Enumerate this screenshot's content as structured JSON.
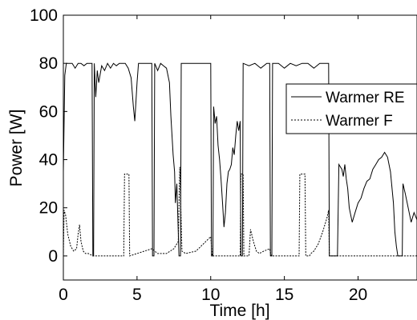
{
  "chart_data": {
    "type": "line",
    "xlabel": "Time [h]",
    "ylabel": "Power [W]",
    "xlim": [
      0,
      24
    ],
    "ylim": [
      -10,
      100
    ],
    "xticks": [
      0,
      5,
      10,
      15,
      20
    ],
    "yticks": [
      0,
      20,
      40,
      60,
      80,
      100
    ],
    "grid": false,
    "legend_position": "right",
    "series": [
      {
        "name": "Warmer RE",
        "line_style": "solid",
        "color": "#000000",
        "points": [
          [
            0,
            35
          ],
          [
            0.1,
            75
          ],
          [
            0.2,
            80
          ],
          [
            0.4,
            80
          ],
          [
            0.6,
            80
          ],
          [
            0.8,
            78
          ],
          [
            1.0,
            80
          ],
          [
            1.2,
            80
          ],
          [
            1.4,
            79
          ],
          [
            1.6,
            80
          ],
          [
            1.8,
            80
          ],
          [
            1.95,
            80
          ],
          [
            2.0,
            0
          ],
          [
            2.05,
            0
          ],
          [
            2.1,
            80
          ],
          [
            2.2,
            66
          ],
          [
            2.3,
            77
          ],
          [
            2.4,
            72
          ],
          [
            2.6,
            79
          ],
          [
            2.8,
            77
          ],
          [
            3.0,
            80
          ],
          [
            3.2,
            78
          ],
          [
            3.4,
            80
          ],
          [
            3.6,
            79
          ],
          [
            3.8,
            80
          ],
          [
            4.0,
            80
          ],
          [
            4.2,
            80
          ],
          [
            4.4,
            78
          ],
          [
            4.6,
            74
          ],
          [
            4.75,
            62
          ],
          [
            4.85,
            56
          ],
          [
            5.0,
            72
          ],
          [
            5.1,
            80
          ],
          [
            5.4,
            80
          ],
          [
            5.7,
            80
          ],
          [
            5.9,
            80
          ],
          [
            6.0,
            80
          ],
          [
            6.05,
            0
          ],
          [
            6.15,
            0
          ],
          [
            6.2,
            80
          ],
          [
            6.4,
            77
          ],
          [
            6.6,
            80
          ],
          [
            6.8,
            79
          ],
          [
            7.0,
            78
          ],
          [
            7.2,
            72
          ],
          [
            7.3,
            58
          ],
          [
            7.45,
            42
          ],
          [
            7.55,
            35
          ],
          [
            7.6,
            22
          ],
          [
            7.7,
            30
          ],
          [
            7.75,
            20
          ],
          [
            7.85,
            0
          ],
          [
            7.95,
            0
          ],
          [
            8.0,
            80
          ],
          [
            8.5,
            80
          ],
          [
            9.0,
            80
          ],
          [
            9.5,
            80
          ],
          [
            10.0,
            80
          ],
          [
            10.05,
            0
          ],
          [
            10.15,
            0
          ],
          [
            10.2,
            62
          ],
          [
            10.3,
            55
          ],
          [
            10.4,
            58
          ],
          [
            10.5,
            46
          ],
          [
            10.6,
            40
          ],
          [
            10.7,
            32
          ],
          [
            10.8,
            22
          ],
          [
            10.9,
            12
          ],
          [
            11.0,
            18
          ],
          [
            11.1,
            30
          ],
          [
            11.2,
            35
          ],
          [
            11.3,
            36
          ],
          [
            11.4,
            38
          ],
          [
            11.5,
            45
          ],
          [
            11.6,
            42
          ],
          [
            11.7,
            50
          ],
          [
            11.8,
            56
          ],
          [
            11.9,
            52
          ],
          [
            12.0,
            56
          ],
          [
            12.05,
            0
          ],
          [
            12.15,
            0
          ],
          [
            12.2,
            80
          ],
          [
            12.6,
            79
          ],
          [
            13.0,
            80
          ],
          [
            13.4,
            78
          ],
          [
            13.8,
            80
          ],
          [
            14.0,
            80
          ],
          [
            14.05,
            0
          ],
          [
            14.15,
            0
          ],
          [
            14.2,
            80
          ],
          [
            14.6,
            80
          ],
          [
            15.0,
            78
          ],
          [
            15.4,
            80
          ],
          [
            15.8,
            79
          ],
          [
            16.2,
            80
          ],
          [
            16.6,
            80
          ],
          [
            17.0,
            78
          ],
          [
            17.4,
            80
          ],
          [
            17.8,
            80
          ],
          [
            18.0,
            80
          ],
          [
            18.05,
            0
          ],
          [
            18.6,
            0
          ],
          [
            18.7,
            38
          ],
          [
            18.9,
            36
          ],
          [
            19.0,
            33
          ],
          [
            19.1,
            38
          ],
          [
            19.2,
            32
          ],
          [
            19.3,
            28
          ],
          [
            19.4,
            20
          ],
          [
            19.6,
            14
          ],
          [
            19.8,
            18
          ],
          [
            20.0,
            22
          ],
          [
            20.2,
            24
          ],
          [
            20.4,
            28
          ],
          [
            20.6,
            31
          ],
          [
            20.8,
            32
          ],
          [
            21.0,
            36
          ],
          [
            21.2,
            38
          ],
          [
            21.4,
            40
          ],
          [
            21.6,
            41
          ],
          [
            21.8,
            43
          ],
          [
            22.0,
            41
          ],
          [
            22.2,
            35
          ],
          [
            22.4,
            22
          ],
          [
            22.5,
            10
          ],
          [
            22.6,
            4
          ],
          [
            22.7,
            0
          ],
          [
            23.0,
            0
          ],
          [
            23.05,
            30
          ],
          [
            23.2,
            26
          ],
          [
            23.4,
            20
          ],
          [
            23.6,
            14
          ],
          [
            23.8,
            18
          ],
          [
            24.0,
            15
          ]
        ]
      },
      {
        "name": "Warmer F",
        "line_style": "dashed",
        "color": "#000000",
        "points": [
          [
            0,
            0
          ],
          [
            0.05,
            19
          ],
          [
            0.15,
            17
          ],
          [
            0.3,
            9
          ],
          [
            0.5,
            4
          ],
          [
            0.7,
            2
          ],
          [
            0.9,
            3
          ],
          [
            1.0,
            9
          ],
          [
            1.1,
            13
          ],
          [
            1.2,
            6
          ],
          [
            1.35,
            2
          ],
          [
            1.5,
            1
          ],
          [
            1.7,
            1
          ],
          [
            2.0,
            0
          ],
          [
            3.0,
            0
          ],
          [
            4.1,
            0
          ],
          [
            4.15,
            34
          ],
          [
            4.45,
            34
          ],
          [
            4.5,
            0
          ],
          [
            5.0,
            1
          ],
          [
            5.5,
            2
          ],
          [
            6.0,
            3
          ],
          [
            6.2,
            2
          ],
          [
            6.4,
            1
          ],
          [
            7.0,
            1
          ],
          [
            7.5,
            3
          ],
          [
            7.8,
            6
          ],
          [
            7.9,
            37
          ],
          [
            8.05,
            2
          ],
          [
            8.3,
            1
          ],
          [
            9.0,
            2
          ],
          [
            9.5,
            5
          ],
          [
            10.0,
            8
          ],
          [
            10.1,
            0
          ],
          [
            11.0,
            0
          ],
          [
            12.0,
            0
          ],
          [
            12.05,
            34
          ],
          [
            12.2,
            34
          ],
          [
            12.25,
            0
          ],
          [
            12.6,
            0
          ],
          [
            12.7,
            11
          ],
          [
            12.9,
            6
          ],
          [
            13.1,
            2
          ],
          [
            13.3,
            1
          ],
          [
            13.6,
            2
          ],
          [
            14.0,
            3
          ],
          [
            14.1,
            0
          ],
          [
            15.0,
            0
          ],
          [
            16.0,
            0
          ],
          [
            16.05,
            34
          ],
          [
            16.4,
            34
          ],
          [
            16.45,
            0
          ],
          [
            16.7,
            0
          ],
          [
            16.8,
            1
          ],
          [
            17.0,
            2
          ],
          [
            17.3,
            5
          ],
          [
            17.6,
            10
          ],
          [
            17.9,
            16
          ],
          [
            18.0,
            19
          ],
          [
            18.05,
            0
          ],
          [
            24.0,
            0
          ]
        ]
      }
    ]
  }
}
